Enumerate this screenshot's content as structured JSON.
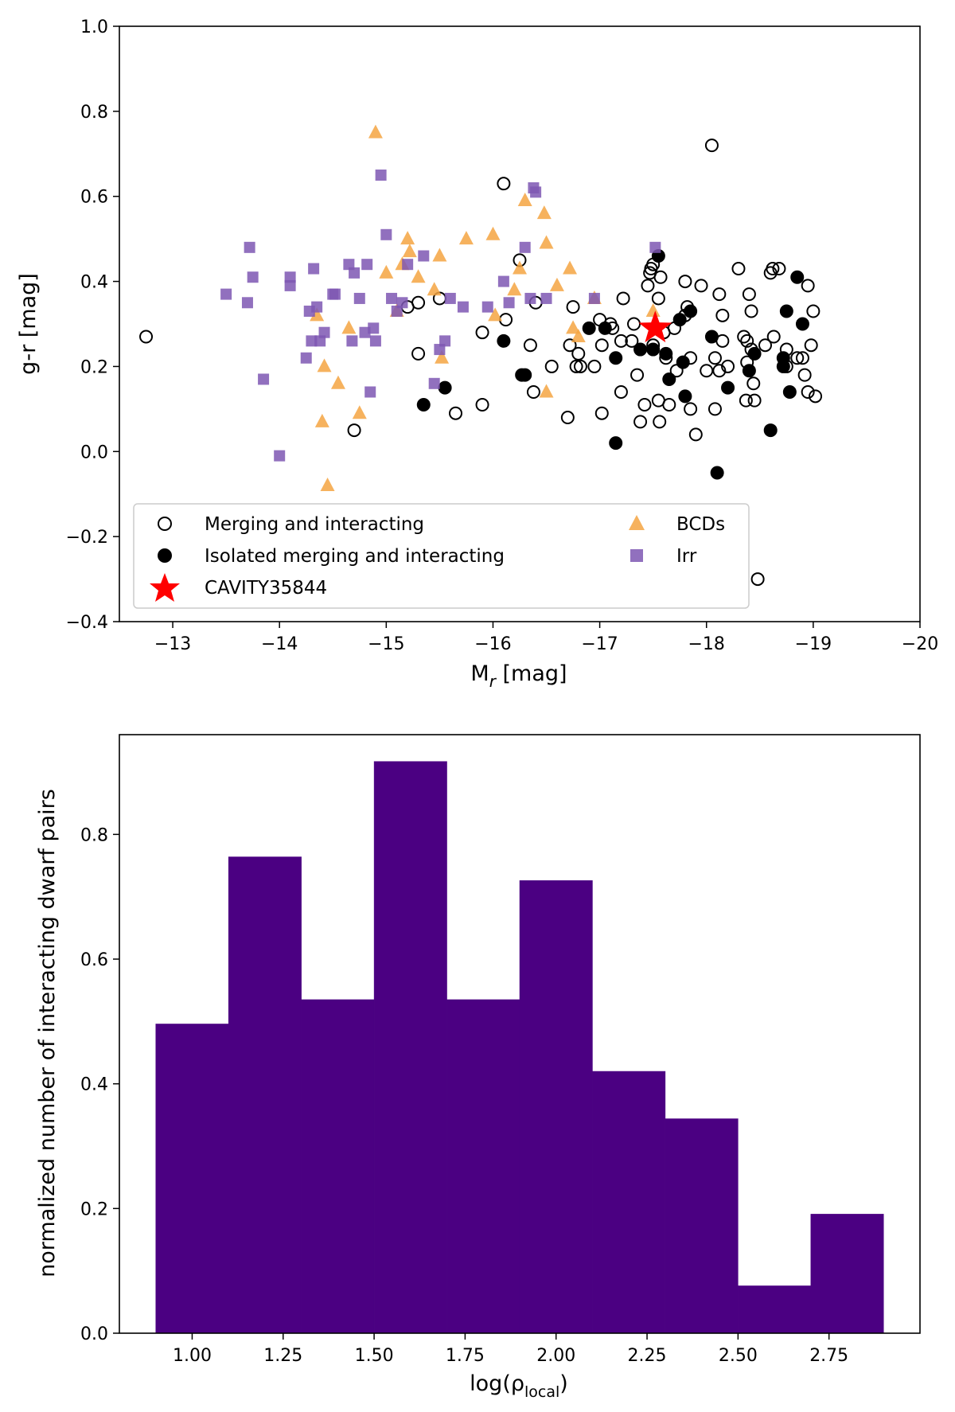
{
  "chart_data": [
    {
      "type": "scatter",
      "title": "",
      "xlabel": "M",
      "xlabel_sub": "r",
      "xlabel_suffix": " [mag]",
      "ylabel": "g-r [mag]",
      "xlim": [
        -12.5,
        -20
      ],
      "ylim": [
        -0.4,
        1.0
      ],
      "x_inverted": true,
      "grid": false,
      "xticks": [
        -13,
        -14,
        -15,
        -16,
        -17,
        -18,
        -19,
        -20
      ],
      "xtick_labels": [
        "−13",
        "−14",
        "−15",
        "−16",
        "−17",
        "−18",
        "−19",
        "−20"
      ],
      "yticks": [
        -0.4,
        -0.2,
        0.0,
        0.2,
        0.4,
        0.6,
        0.8,
        1.0
      ],
      "ytick_labels": [
        "−0.4",
        "−0.2",
        "0.0",
        "0.2",
        "0.4",
        "0.6",
        "0.8",
        "1.0"
      ],
      "legend_position": "bottom-left",
      "series": [
        {
          "name": "Merging and interacting",
          "marker": "open-circle",
          "color": "#000000",
          "points": [
            [
              -12.75,
              0.27
            ],
            [
              -14.7,
              0.05
            ],
            [
              -15.2,
              0.34
            ],
            [
              -15.3,
              0.35
            ],
            [
              -15.3,
              0.23
            ],
            [
              -15.5,
              0.36
            ],
            [
              -15.65,
              0.09
            ],
            [
              -15.9,
              0.11
            ],
            [
              -15.9,
              0.28
            ],
            [
              -16.1,
              0.63
            ],
            [
              -16.12,
              0.31
            ],
            [
              -16.25,
              0.45
            ],
            [
              -16.35,
              0.25
            ],
            [
              -16.38,
              0.14
            ],
            [
              -16.4,
              0.35
            ],
            [
              -16.55,
              0.2
            ],
            [
              -16.7,
              0.08
            ],
            [
              -16.72,
              0.25
            ],
            [
              -16.75,
              0.34
            ],
            [
              -16.78,
              0.2
            ],
            [
              -16.8,
              0.23
            ],
            [
              -16.82,
              0.2
            ],
            [
              -16.95,
              0.2
            ],
            [
              -17.0,
              0.31
            ],
            [
              -17.02,
              0.09
            ],
            [
              -17.02,
              0.25
            ],
            [
              -17.1,
              0.3
            ],
            [
              -17.12,
              0.29
            ],
            [
              -17.2,
              0.14
            ],
            [
              -17.2,
              0.26
            ],
            [
              -17.22,
              0.36
            ],
            [
              -17.3,
              0.26
            ],
            [
              -17.32,
              0.3
            ],
            [
              -17.35,
              0.18
            ],
            [
              -17.38,
              0.07
            ],
            [
              -17.42,
              0.11
            ],
            [
              -17.45,
              0.39
            ],
            [
              -17.47,
              0.42
            ],
            [
              -17.48,
              0.43
            ],
            [
              -17.5,
              0.44
            ],
            [
              -17.5,
              0.25
            ],
            [
              -17.55,
              0.36
            ],
            [
              -17.55,
              0.12
            ],
            [
              -17.56,
              0.07
            ],
            [
              -17.57,
              0.41
            ],
            [
              -17.6,
              0.28
            ],
            [
              -17.62,
              0.22
            ],
            [
              -17.65,
              0.11
            ],
            [
              -17.7,
              0.29
            ],
            [
              -17.72,
              0.19
            ],
            [
              -17.8,
              0.4
            ],
            [
              -17.8,
              0.32
            ],
            [
              -17.82,
              0.34
            ],
            [
              -17.85,
              0.22
            ],
            [
              -17.85,
              0.1
            ],
            [
              -17.9,
              0.04
            ],
            [
              -17.95,
              0.39
            ],
            [
              -18.0,
              0.19
            ],
            [
              -18.05,
              0.72
            ],
            [
              -18.08,
              0.22
            ],
            [
              -18.08,
              0.1
            ],
            [
              -18.12,
              0.37
            ],
            [
              -18.12,
              0.19
            ],
            [
              -18.15,
              0.26
            ],
            [
              -18.15,
              0.32
            ],
            [
              -18.2,
              0.2
            ],
            [
              -18.3,
              0.43
            ],
            [
              -18.35,
              0.27
            ],
            [
              -18.37,
              0.12
            ],
            [
              -18.38,
              0.26
            ],
            [
              -18.38,
              0.21
            ],
            [
              -18.4,
              0.37
            ],
            [
              -18.42,
              0.24
            ],
            [
              -18.42,
              0.33
            ],
            [
              -18.44,
              0.16
            ],
            [
              -18.45,
              0.12
            ],
            [
              -18.48,
              -0.3
            ],
            [
              -18.55,
              0.25
            ],
            [
              -18.6,
              0.42
            ],
            [
              -18.62,
              0.43
            ],
            [
              -18.63,
              0.27
            ],
            [
              -18.68,
              0.43
            ],
            [
              -18.75,
              0.24
            ],
            [
              -18.75,
              0.2
            ],
            [
              -18.85,
              0.22
            ],
            [
              -18.9,
              0.22
            ],
            [
              -18.92,
              0.18
            ],
            [
              -18.95,
              0.14
            ],
            [
              -18.95,
              0.39
            ],
            [
              -18.98,
              0.25
            ],
            [
              -19.0,
              0.33
            ],
            [
              -19.02,
              0.13
            ]
          ]
        },
        {
          "name": "Isolated merging and interacting",
          "marker": "filled-circle",
          "color": "#000000",
          "points": [
            [
              -15.35,
              0.11
            ],
            [
              -15.55,
              0.15
            ],
            [
              -16.1,
              0.26
            ],
            [
              -16.27,
              0.18
            ],
            [
              -16.3,
              0.18
            ],
            [
              -16.9,
              0.29
            ],
            [
              -17.05,
              0.29
            ],
            [
              -17.15,
              0.02
            ],
            [
              -17.15,
              0.22
            ],
            [
              -17.38,
              0.24
            ],
            [
              -17.5,
              0.24
            ],
            [
              -17.55,
              0.46
            ],
            [
              -17.62,
              0.23
            ],
            [
              -17.65,
              0.17
            ],
            [
              -17.75,
              0.31
            ],
            [
              -17.78,
              0.21
            ],
            [
              -17.8,
              0.13
            ],
            [
              -17.85,
              0.33
            ],
            [
              -18.05,
              0.27
            ],
            [
              -18.1,
              -0.05
            ],
            [
              -18.2,
              0.15
            ],
            [
              -18.4,
              0.19
            ],
            [
              -18.45,
              0.23
            ],
            [
              -18.6,
              0.05
            ],
            [
              -18.72,
              0.2
            ],
            [
              -18.75,
              0.33
            ],
            [
              -18.78,
              0.14
            ],
            [
              -18.85,
              0.41
            ],
            [
              -18.9,
              0.3
            ],
            [
              -18.72,
              0.22
            ]
          ]
        },
        {
          "name": "BCDs",
          "marker": "triangle",
          "color": "#f5a442",
          "points": [
            [
              -14.35,
              0.32
            ],
            [
              -14.4,
              0.07
            ],
            [
              -14.42,
              0.2
            ],
            [
              -14.45,
              -0.08
            ],
            [
              -14.55,
              0.16
            ],
            [
              -14.65,
              0.29
            ],
            [
              -14.75,
              0.09
            ],
            [
              -14.9,
              0.75
            ],
            [
              -15.0,
              0.42
            ],
            [
              -15.1,
              0.33
            ],
            [
              -15.15,
              0.44
            ],
            [
              -15.2,
              0.5
            ],
            [
              -15.22,
              0.47
            ],
            [
              -15.3,
              0.41
            ],
            [
              -15.45,
              0.38
            ],
            [
              -15.5,
              0.46
            ],
            [
              -15.52,
              0.22
            ],
            [
              -15.75,
              0.5
            ],
            [
              -16.0,
              0.51
            ],
            [
              -16.02,
              0.32
            ],
            [
              -16.2,
              0.38
            ],
            [
              -16.25,
              0.43
            ],
            [
              -16.3,
              0.59
            ],
            [
              -16.48,
              0.56
            ],
            [
              -16.5,
              0.49
            ],
            [
              -16.5,
              0.14
            ],
            [
              -16.6,
              0.39
            ],
            [
              -16.72,
              0.43
            ],
            [
              -16.75,
              0.29
            ],
            [
              -16.8,
              0.27
            ],
            [
              -16.95,
              0.36
            ],
            [
              -17.5,
              0.33
            ]
          ]
        },
        {
          "name": "Irr",
          "marker": "square",
          "color": "#7e57b3",
          "points": [
            [
              -13.5,
              0.37
            ],
            [
              -13.7,
              0.35
            ],
            [
              -13.72,
              0.48
            ],
            [
              -13.75,
              0.41
            ],
            [
              -13.85,
              0.17
            ],
            [
              -14.0,
              -0.01
            ],
            [
              -14.1,
              0.39
            ],
            [
              -14.1,
              0.41
            ],
            [
              -14.25,
              0.22
            ],
            [
              -14.28,
              0.33
            ],
            [
              -14.3,
              0.26
            ],
            [
              -14.32,
              0.43
            ],
            [
              -14.35,
              0.34
            ],
            [
              -14.38,
              0.26
            ],
            [
              -14.42,
              0.28
            ],
            [
              -14.5,
              0.37
            ],
            [
              -14.52,
              0.37
            ],
            [
              -14.65,
              0.44
            ],
            [
              -14.68,
              0.26
            ],
            [
              -14.7,
              0.42
            ],
            [
              -14.75,
              0.36
            ],
            [
              -14.8,
              0.28
            ],
            [
              -14.82,
              0.44
            ],
            [
              -14.85,
              0.14
            ],
            [
              -14.88,
              0.29
            ],
            [
              -14.9,
              0.26
            ],
            [
              -14.95,
              0.65
            ],
            [
              -15.0,
              0.51
            ],
            [
              -15.05,
              0.36
            ],
            [
              -15.1,
              0.33
            ],
            [
              -15.15,
              0.35
            ],
            [
              -15.2,
              0.44
            ],
            [
              -15.35,
              0.46
            ],
            [
              -15.45,
              0.16
            ],
            [
              -15.5,
              0.24
            ],
            [
              -15.55,
              0.26
            ],
            [
              -15.6,
              0.36
            ],
            [
              -15.72,
              0.34
            ],
            [
              -15.95,
              0.34
            ],
            [
              -16.1,
              0.4
            ],
            [
              -16.15,
              0.35
            ],
            [
              -16.3,
              0.48
            ],
            [
              -16.35,
              0.36
            ],
            [
              -16.38,
              0.62
            ],
            [
              -16.4,
              0.61
            ],
            [
              -16.5,
              0.36
            ],
            [
              -16.95,
              0.36
            ],
            [
              -17.52,
              0.48
            ]
          ]
        },
        {
          "name": "CAVITY35844",
          "marker": "star",
          "color": "#ff0000",
          "points": [
            [
              -17.52,
              0.29
            ]
          ]
        }
      ]
    },
    {
      "type": "bar",
      "title": "",
      "histogram": true,
      "xlabel": "log(ρ",
      "xlabel_sub": "local",
      "xlabel_suffix": ")",
      "ylabel": "normalized number of interacting dwarf pairs",
      "xlim": [
        0.8,
        3.0
      ],
      "ylim": [
        0,
        0.96
      ],
      "grid": false,
      "color": "#4b0082",
      "xticks": [
        1.0,
        1.25,
        1.5,
        1.75,
        2.0,
        2.25,
        2.5,
        2.75
      ],
      "xtick_labels": [
        "1.00",
        "1.25",
        "1.50",
        "1.75",
        "2.00",
        "2.25",
        "2.50",
        "2.75"
      ],
      "yticks": [
        0.0,
        0.2,
        0.4,
        0.6,
        0.8
      ],
      "ytick_labels": [
        "0.0",
        "0.2",
        "0.4",
        "0.6",
        "0.8"
      ],
      "bin_edges": [
        0.9,
        1.1,
        1.3,
        1.5,
        1.7,
        1.9,
        2.1,
        2.3,
        2.5,
        2.7,
        2.9
      ],
      "values": [
        0.496,
        0.764,
        0.535,
        0.917,
        0.535,
        0.726,
        0.42,
        0.344,
        0.076,
        0.191
      ]
    }
  ]
}
